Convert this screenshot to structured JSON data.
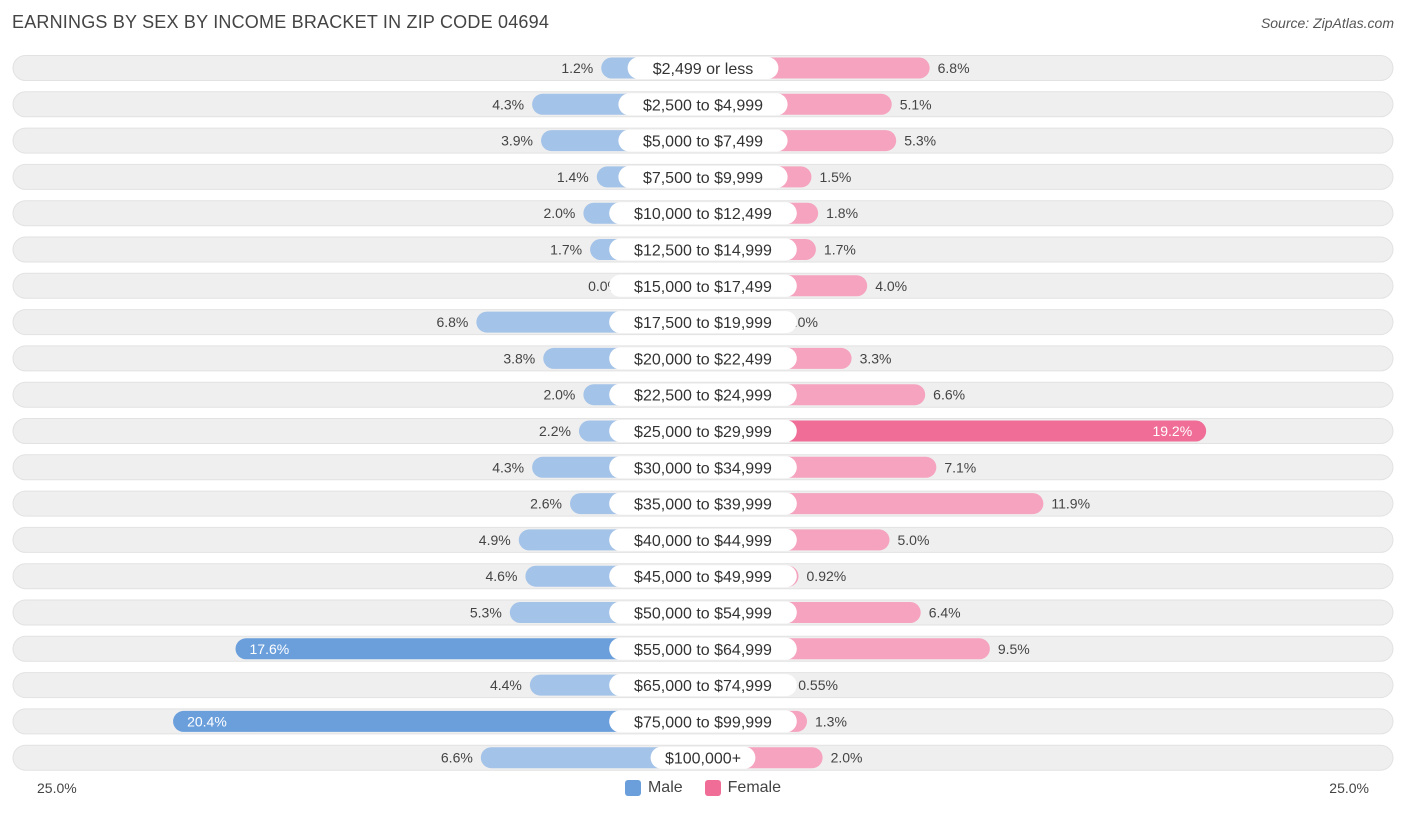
{
  "title": "EARNINGS BY SEX BY INCOME BRACKET IN ZIP CODE 04694",
  "source": "Source: ZipAtlas.com",
  "colors": {
    "male_light": "#a4c3e8",
    "male_strong": "#6a9fdc",
    "female_light": "#f5a3be",
    "female_strong": "#ef6d97",
    "row_bg": "#efefef"
  },
  "chart_data": {
    "type": "bar",
    "orientation": "horizontal-diverging",
    "title": "EARNINGS BY SEX BY INCOME BRACKET IN ZIP CODE 04694",
    "categories": [
      "$2,499 or less",
      "$2,500 to $4,999",
      "$5,000 to $7,499",
      "$7,500 to $9,999",
      "$10,000 to $12,499",
      "$12,500 to $14,999",
      "$15,000 to $17,499",
      "$17,500 to $19,999",
      "$20,000 to $22,499",
      "$22,500 to $24,999",
      "$25,000 to $29,999",
      "$30,000 to $34,999",
      "$35,000 to $39,999",
      "$40,000 to $44,999",
      "$45,000 to $49,999",
      "$50,000 to $54,999",
      "$55,000 to $64,999",
      "$65,000 to $74,999",
      "$75,000 to $99,999",
      "$100,000+"
    ],
    "series": [
      {
        "name": "Male",
        "values": [
          1.2,
          4.3,
          3.9,
          1.4,
          2.0,
          1.7,
          0.0,
          6.8,
          3.8,
          2.0,
          2.2,
          4.3,
          2.6,
          4.9,
          4.6,
          5.3,
          17.6,
          4.4,
          20.4,
          6.6
        ],
        "labels": [
          "1.2%",
          "4.3%",
          "3.9%",
          "1.4%",
          "2.0%",
          "1.7%",
          "0.0%",
          "6.8%",
          "3.8%",
          "2.0%",
          "2.2%",
          "4.3%",
          "2.6%",
          "4.9%",
          "4.6%",
          "5.3%",
          "17.6%",
          "4.4%",
          "20.4%",
          "6.6%"
        ]
      },
      {
        "name": "Female",
        "values": [
          6.8,
          5.1,
          5.3,
          1.5,
          1.8,
          1.7,
          4.0,
          0.0,
          3.3,
          6.6,
          19.2,
          7.1,
          11.9,
          5.0,
          0.92,
          6.4,
          9.5,
          0.55,
          1.3,
          2.0
        ],
        "labels": [
          "6.8%",
          "5.1%",
          "5.3%",
          "1.5%",
          "1.8%",
          "1.7%",
          "4.0%",
          "0.0%",
          "3.3%",
          "6.6%",
          "19.2%",
          "7.1%",
          "11.9%",
          "5.0%",
          "0.92%",
          "6.4%",
          "9.5%",
          "0.55%",
          "1.3%",
          "2.0%"
        ]
      }
    ],
    "axis_min_label": "25.0%",
    "axis_max_label": "25.0%",
    "xlim": [
      -25,
      25
    ],
    "legend": [
      "Male",
      "Female"
    ],
    "legend_position": "bottom-center"
  }
}
